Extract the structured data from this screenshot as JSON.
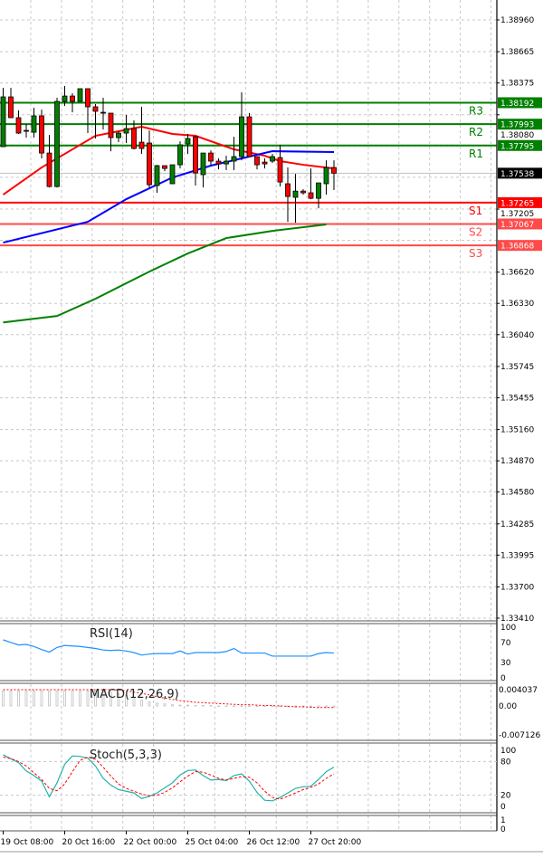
{
  "chart_data": {
    "type": "candlestick",
    "ylim": [
      1.3341,
      1.3896
    ],
    "grid": true,
    "price_ticks": [
      "1.38960",
      "1.38665",
      "1.38375",
      "1.38080",
      "1.37205",
      "1.36620",
      "1.36330",
      "1.36040",
      "1.35745",
      "1.35455",
      "1.35160",
      "1.34870",
      "1.34580",
      "1.34285",
      "1.33995",
      "1.33700",
      "1.33410"
    ],
    "x_labels": [
      {
        "candle": 0,
        "text": "19 Oct 08:00"
      },
      {
        "candle": 8,
        "text": "20 Oct 16:00"
      },
      {
        "candle": 16,
        "text": "22 Oct 00:00"
      },
      {
        "candle": 24,
        "text": "25 Oct 04:00"
      },
      {
        "candle": 32,
        "text": "26 Oct 12:00"
      },
      {
        "candle": 40,
        "text": "27 Oct 20:00"
      }
    ],
    "current_price": {
      "value": 1.37538,
      "label": "1.37538",
      "color": "#000000"
    },
    "candles_ohlc": [
      [
        1.37784,
        1.3833,
        1.37784,
        1.38246
      ],
      [
        1.38246,
        1.3833,
        1.38053,
        1.38053
      ],
      [
        1.38053,
        1.3812,
        1.37902,
        1.3791
      ],
      [
        1.37935,
        1.37994,
        1.37868,
        1.37927
      ],
      [
        1.37918,
        1.38145,
        1.37868,
        1.3807
      ],
      [
        1.3807,
        1.38128,
        1.37675,
        1.37725
      ],
      [
        1.37725,
        1.37893,
        1.37406,
        1.37414
      ],
      [
        1.37414,
        1.38238,
        1.37406,
        1.38204
      ],
      [
        1.38204,
        1.38347,
        1.38162,
        1.38254
      ],
      [
        1.38254,
        1.3828,
        1.38103,
        1.38204
      ],
      [
        1.38204,
        1.38322,
        1.38204,
        1.38322
      ],
      [
        1.38322,
        1.38322,
        1.3791,
        1.38154
      ],
      [
        1.38154,
        1.38179,
        1.3786,
        1.38112
      ],
      [
        1.38103,
        1.38238,
        1.37944,
        1.38095
      ],
      [
        1.38095,
        1.38095,
        1.37742,
        1.37868
      ],
      [
        1.37868,
        1.37927,
        1.37826,
        1.3791
      ],
      [
        1.3791,
        1.38078,
        1.37818,
        1.37952
      ],
      [
        1.37952,
        1.38028,
        1.37759,
        1.37767
      ],
      [
        1.37826,
        1.38154,
        1.37717,
        1.37767
      ],
      [
        1.37818,
        1.37935,
        1.37398,
        1.37431
      ],
      [
        1.37423,
        1.37616,
        1.37356,
        1.37608
      ],
      [
        1.37608,
        1.37608,
        1.37557,
        1.37582
      ],
      [
        1.3744,
        1.37616,
        1.3744,
        1.37616
      ],
      [
        1.37616,
        1.37834,
        1.37582,
        1.37801
      ],
      [
        1.37809,
        1.37902,
        1.37717,
        1.3786
      ],
      [
        1.37876,
        1.37885,
        1.37423,
        1.3754
      ],
      [
        1.37524,
        1.37725,
        1.37406,
        1.37725
      ],
      [
        1.37725,
        1.3775,
        1.37608,
        1.3765
      ],
      [
        1.3765,
        1.37675,
        1.37574,
        1.37624
      ],
      [
        1.37624,
        1.377,
        1.37566,
        1.3765
      ],
      [
        1.3765,
        1.37876,
        1.37566,
        1.37692
      ],
      [
        1.37692,
        1.38288,
        1.37658,
        1.38061
      ],
      [
        1.38061,
        1.38095,
        1.37692,
        1.37692
      ],
      [
        1.37692,
        1.37692,
        1.37574,
        1.37616
      ],
      [
        1.37641,
        1.37675,
        1.37582,
        1.37624
      ],
      [
        1.3765,
        1.37717,
        1.37633,
        1.37692
      ],
      [
        1.37683,
        1.37801,
        1.37414,
        1.37456
      ],
      [
        1.3744,
        1.37591,
        1.37087,
        1.37322
      ],
      [
        1.37314,
        1.37532,
        1.37078,
        1.37372
      ],
      [
        1.37372,
        1.3739,
        1.3734,
        1.37356
      ],
      [
        1.37356,
        1.37582,
        1.37297,
        1.37305
      ],
      [
        1.37305,
        1.37448,
        1.37213,
        1.37448
      ],
      [
        1.3744,
        1.37658,
        1.37339,
        1.37591
      ],
      [
        1.37591,
        1.37658,
        1.37381,
        1.37538
      ]
    ],
    "colors": {
      "bull": "#008000",
      "bear": "#ff0000"
    },
    "moving_averages": [
      {
        "color": "#ff0000",
        "points": [
          [
            0,
            1.37339
          ],
          [
            5,
            1.37591
          ],
          [
            12,
            1.37885
          ],
          [
            18,
            1.37969
          ],
          [
            22,
            1.37902
          ],
          [
            25,
            1.37885
          ],
          [
            30,
            1.37759
          ],
          [
            34,
            1.377
          ],
          [
            36,
            1.3765
          ],
          [
            39,
            1.37616
          ],
          [
            43,
            1.37582
          ]
        ]
      },
      {
        "color": "#0000ff",
        "points": [
          [
            0,
            1.36894
          ],
          [
            11,
            1.37087
          ],
          [
            16,
            1.37297
          ],
          [
            22,
            1.37498
          ],
          [
            27,
            1.37608
          ],
          [
            32,
            1.37692
          ],
          [
            35,
            1.37742
          ],
          [
            43,
            1.37734
          ]
        ]
      },
      {
        "color": "#008000",
        "points": [
          [
            0,
            1.36154
          ],
          [
            7,
            1.36213
          ],
          [
            12,
            1.36373
          ],
          [
            19,
            1.36625
          ],
          [
            24,
            1.36793
          ],
          [
            29,
            1.36936
          ],
          [
            35,
            1.37003
          ],
          [
            42,
            1.37062
          ]
        ]
      }
    ],
    "pivots": [
      {
        "name": "R3",
        "value": 1.38192,
        "label": "1.38192",
        "color": "#008000"
      },
      {
        "name": "R2",
        "value": 1.37993,
        "label": "1.37993",
        "color": "#008000"
      },
      {
        "name": "R1",
        "value": 1.37795,
        "label": "1.37795",
        "color": "#008000"
      },
      {
        "name": "S1",
        "value": 1.37265,
        "label": "1.37265",
        "color": "#ff0000"
      },
      {
        "name": "S2",
        "value": 1.37067,
        "label": "1.37067",
        "color": "#ff4a4a"
      },
      {
        "name": "S3",
        "value": 1.36868,
        "label": "1.36868",
        "color": "#ff4a4a"
      }
    ],
    "rsi": {
      "title": "RSI(14)",
      "color": "#1e90ff",
      "ticks": [
        "100",
        "70",
        "30",
        "0"
      ],
      "values": [
        75,
        70,
        65,
        66,
        62,
        56,
        51,
        60,
        64,
        63,
        62,
        60,
        58,
        55,
        54,
        55,
        53,
        50,
        45,
        47,
        48,
        48,
        48,
        53,
        47,
        50,
        50,
        50,
        50,
        52,
        58,
        49,
        49,
        49,
        49,
        43,
        43,
        43,
        43,
        43,
        43,
        48,
        50,
        49
      ]
    },
    "macd": {
      "title": "MACD(12,26,9)",
      "ticks": [
        "0.004037",
        "0.00",
        "-0.007126"
      ],
      "histogram_color": "#c0c0c0",
      "signal_color": "#ff0000",
      "histogram": [
        0.0037,
        0.0037,
        0.0037,
        0.0037,
        0.0037,
        0.0037,
        0.0037,
        0.0037,
        0.0037,
        0.0037,
        0.0037,
        0.0037,
        0.0037,
        0.0036,
        0.0034,
        0.003,
        0.0026,
        0.002,
        0.0014,
        0.001,
        0.0007,
        0.0005,
        0.0003,
        0.0002,
        0.0002,
        0.0001,
        0.0001,
        0.0001,
        0,
        0,
        0,
        0,
        0,
        0,
        0,
        -0.0001,
        -0.0001,
        -0.0002,
        -0.0003,
        -0.0003,
        -0.0004,
        -0.0004,
        -0.0004,
        -0.0004
      ],
      "signal": [
        0.004,
        0.004,
        0.004,
        0.004,
        0.004,
        0.004,
        0.004,
        0.004,
        0.004,
        0.004,
        0.004,
        0.004,
        0.004,
        0.004,
        0.004,
        0.0039,
        0.0037,
        0.0034,
        0.0031,
        0.0027,
        0.0023,
        0.0019,
        0.0016,
        0.0013,
        0.0011,
        0.0009,
        0.0008,
        0.0007,
        0.0006,
        0.0005,
        0.0004,
        0.0003,
        0.0003,
        0.0002,
        0.0001,
        0.0001,
        0,
        -0.0001,
        -0.0002,
        -0.0002,
        -0.0003,
        -0.0004,
        -0.0004,
        -0.0004
      ]
    },
    "stochastic": {
      "title": "Stoch(5,3,3)",
      "ticks": [
        "100",
        "80",
        "20",
        "0"
      ],
      "k_color": "#20b2aa",
      "d_color": "#ff0000",
      "k": [
        92,
        85,
        78,
        63,
        55,
        45,
        17,
        42,
        75,
        90,
        89,
        86,
        72,
        50,
        38,
        30,
        27,
        24,
        14,
        18,
        24,
        33,
        42,
        56,
        64,
        65,
        55,
        47,
        48,
        46,
        55,
        58,
        45,
        25,
        11,
        10,
        16,
        24,
        32,
        35,
        36,
        48,
        62,
        70
      ],
      "d": [
        88,
        85,
        80,
        72,
        60,
        48,
        32,
        28,
        40,
        62,
        82,
        88,
        84,
        70,
        54,
        40,
        32,
        27,
        22,
        19,
        20,
        25,
        33,
        44,
        54,
        62,
        61,
        56,
        50,
        47,
        50,
        53,
        52,
        42,
        27,
        16,
        13,
        18,
        24,
        30,
        34,
        40,
        50,
        58
      ]
    },
    "empty_panel_ticks": [
      "1",
      "0"
    ]
  }
}
